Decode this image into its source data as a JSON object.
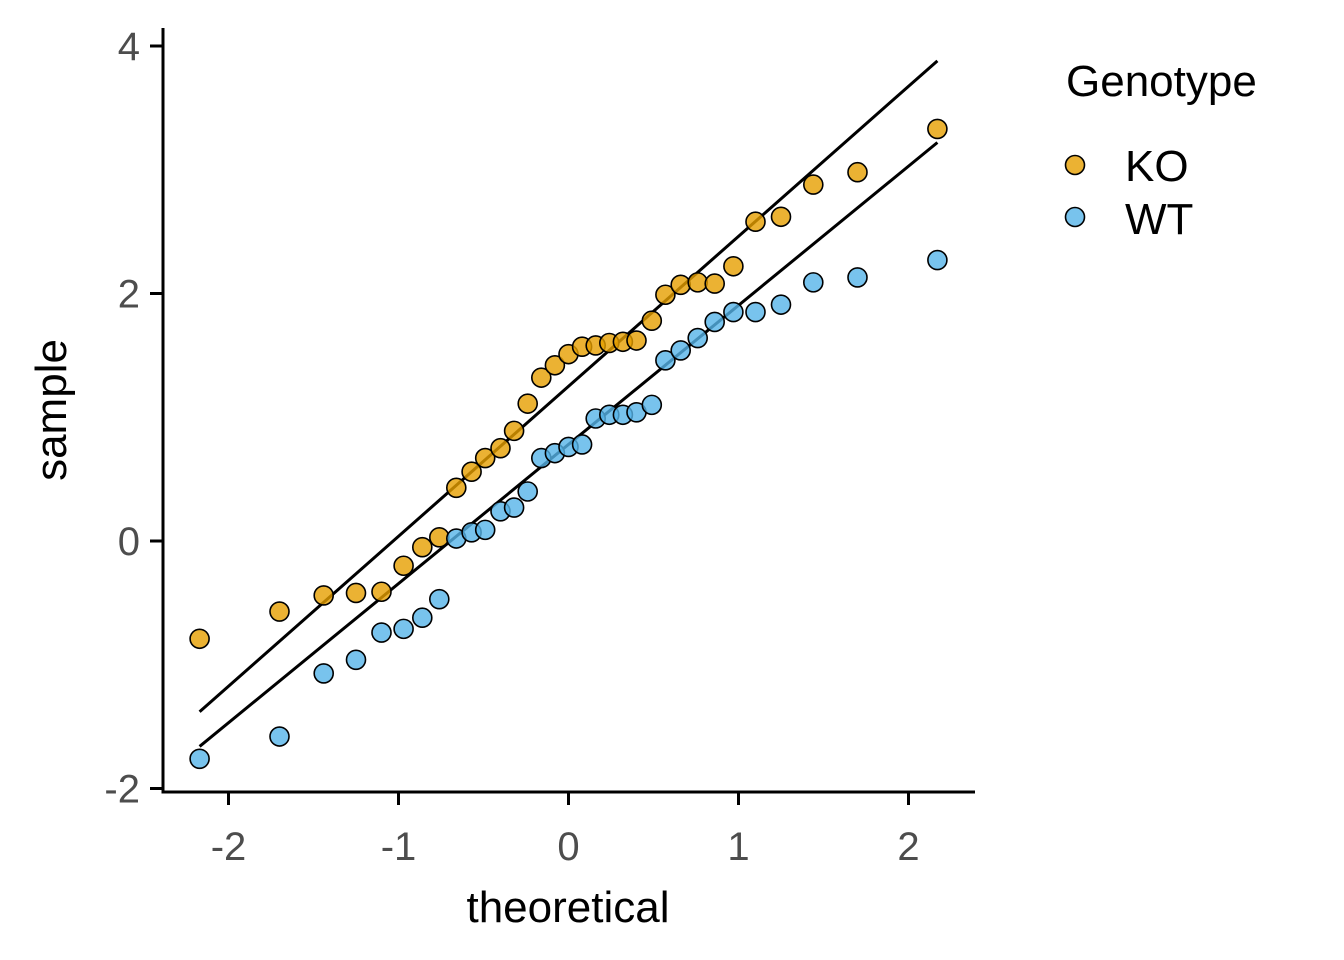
{
  "chart_data": {
    "type": "scatter",
    "xlabel": "theoretical",
    "ylabel": "sample",
    "xlim": [
      -2.4,
      2.4
    ],
    "ylim": [
      -2.0,
      4.0
    ],
    "x_ticks": [
      -2,
      -1,
      0,
      1,
      2
    ],
    "x_tick_labels": [
      "-2",
      "-1",
      "0",
      "1",
      "2"
    ],
    "y_ticks": [
      -2,
      0,
      2,
      4
    ],
    "y_tick_labels": [
      "-2",
      "0",
      "2",
      "4"
    ],
    "grid": false,
    "legend": {
      "title": "Genotype",
      "position": "right",
      "entries": [
        "KO",
        "WT"
      ]
    },
    "series": [
      {
        "name": "KO",
        "color": "#E69F00",
        "points": [
          [
            -2.17,
            -0.79
          ],
          [
            -1.7,
            -0.57
          ],
          [
            -1.44,
            -0.44
          ],
          [
            -1.25,
            -0.42
          ],
          [
            -1.1,
            -0.41
          ],
          [
            -0.97,
            -0.2
          ],
          [
            -0.86,
            -0.05
          ],
          [
            -0.76,
            0.03
          ],
          [
            -0.66,
            0.43
          ],
          [
            -0.57,
            0.56
          ],
          [
            -0.49,
            0.67
          ],
          [
            -0.4,
            0.75
          ],
          [
            -0.32,
            0.89
          ],
          [
            -0.24,
            1.11
          ],
          [
            -0.16,
            1.32
          ],
          [
            -0.08,
            1.42
          ],
          [
            0.0,
            1.51
          ],
          [
            0.08,
            1.57
          ],
          [
            0.16,
            1.58
          ],
          [
            0.24,
            1.6
          ],
          [
            0.32,
            1.61
          ],
          [
            0.4,
            1.62
          ],
          [
            0.49,
            1.78
          ],
          [
            0.57,
            1.99
          ],
          [
            0.66,
            2.07
          ],
          [
            0.76,
            2.09
          ],
          [
            0.86,
            2.08
          ],
          [
            0.97,
            2.22
          ],
          [
            1.1,
            2.58
          ],
          [
            1.25,
            2.62
          ],
          [
            1.44,
            2.88
          ],
          [
            1.7,
            2.98
          ],
          [
            2.17,
            3.33
          ]
        ],
        "qq_line": [
          [
            -2.17,
            -1.38
          ],
          [
            2.17,
            3.88
          ]
        ]
      },
      {
        "name": "WT",
        "color": "#56B4E9",
        "points": [
          [
            -2.17,
            -1.76
          ],
          [
            -1.7,
            -1.58
          ],
          [
            -1.44,
            -1.07
          ],
          [
            -1.25,
            -0.96
          ],
          [
            -1.1,
            -0.74
          ],
          [
            -0.97,
            -0.71
          ],
          [
            -0.86,
            -0.62
          ],
          [
            -0.76,
            -0.47
          ],
          [
            -0.66,
            0.02
          ],
          [
            -0.57,
            0.07
          ],
          [
            -0.49,
            0.09
          ],
          [
            -0.4,
            0.24
          ],
          [
            -0.32,
            0.27
          ],
          [
            -0.24,
            0.4
          ],
          [
            -0.16,
            0.67
          ],
          [
            -0.08,
            0.71
          ],
          [
            0.0,
            0.76
          ],
          [
            0.08,
            0.78
          ],
          [
            0.16,
            0.99
          ],
          [
            0.24,
            1.02
          ],
          [
            0.32,
            1.02
          ],
          [
            0.4,
            1.04
          ],
          [
            0.49,
            1.1
          ],
          [
            0.57,
            1.46
          ],
          [
            0.66,
            1.54
          ],
          [
            0.76,
            1.64
          ],
          [
            0.86,
            1.77
          ],
          [
            0.97,
            1.85
          ],
          [
            1.1,
            1.85
          ],
          [
            1.25,
            1.91
          ],
          [
            1.44,
            2.09
          ],
          [
            1.7,
            2.13
          ],
          [
            2.17,
            2.27
          ]
        ],
        "qq_line": [
          [
            -2.17,
            -1.66
          ],
          [
            2.17,
            3.22
          ]
        ]
      }
    ]
  }
}
